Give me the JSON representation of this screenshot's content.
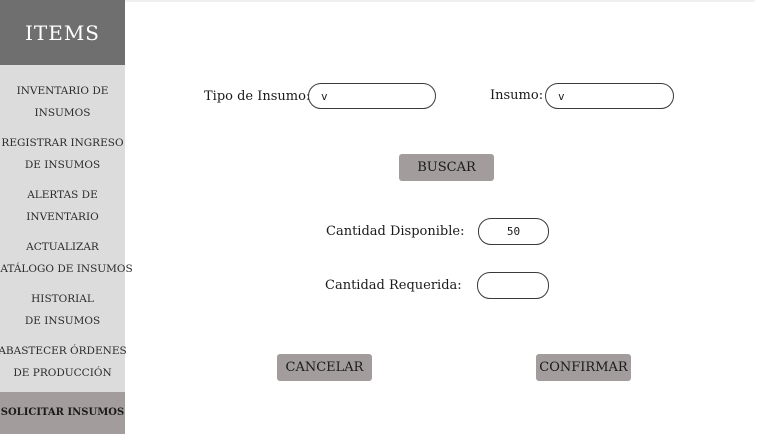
{
  "sidebar": {
    "title": "ITEMS",
    "items": [
      {
        "line1": "INVENTARIO DE",
        "line2": "INSUMOS"
      },
      {
        "line1": "REGISTRAR INGRESO",
        "line2": "DE INSUMOS"
      },
      {
        "line1": "ALERTAS DE",
        "line2": "INVENTARIO"
      },
      {
        "line1": "ACTUALIZAR",
        "line2": "CATÁLOGO DE INSUMOS"
      },
      {
        "line1": "HISTORIAL",
        "line2": "DE INSUMOS"
      },
      {
        "line1": "ABASTECER ÓRDENES",
        "line2": "DE PRODUCCIÓN"
      },
      {
        "line1": "SOLICITAR INSUMOS"
      }
    ]
  },
  "form": {
    "tipo_label": "Tipo de Insumo:",
    "tipo_value": "v",
    "insumo_label": "Insumo:",
    "insumo_value": "v",
    "buscar_label": "BUSCAR",
    "disponible_label": "Cantidad Disponible:",
    "disponible_value": "50",
    "requerida_label": "Cantidad Requerida:",
    "requerida_value": "",
    "cancel_label": "CANCELAR",
    "confirm_label": "CONFIRMAR"
  },
  "colors": {
    "sidebar_bg": "#dcdcdc",
    "sidebar_header_bg": "#6f6f6f",
    "active_item_bg": "#a29c9c",
    "button_bg": "#a29c9c"
  }
}
